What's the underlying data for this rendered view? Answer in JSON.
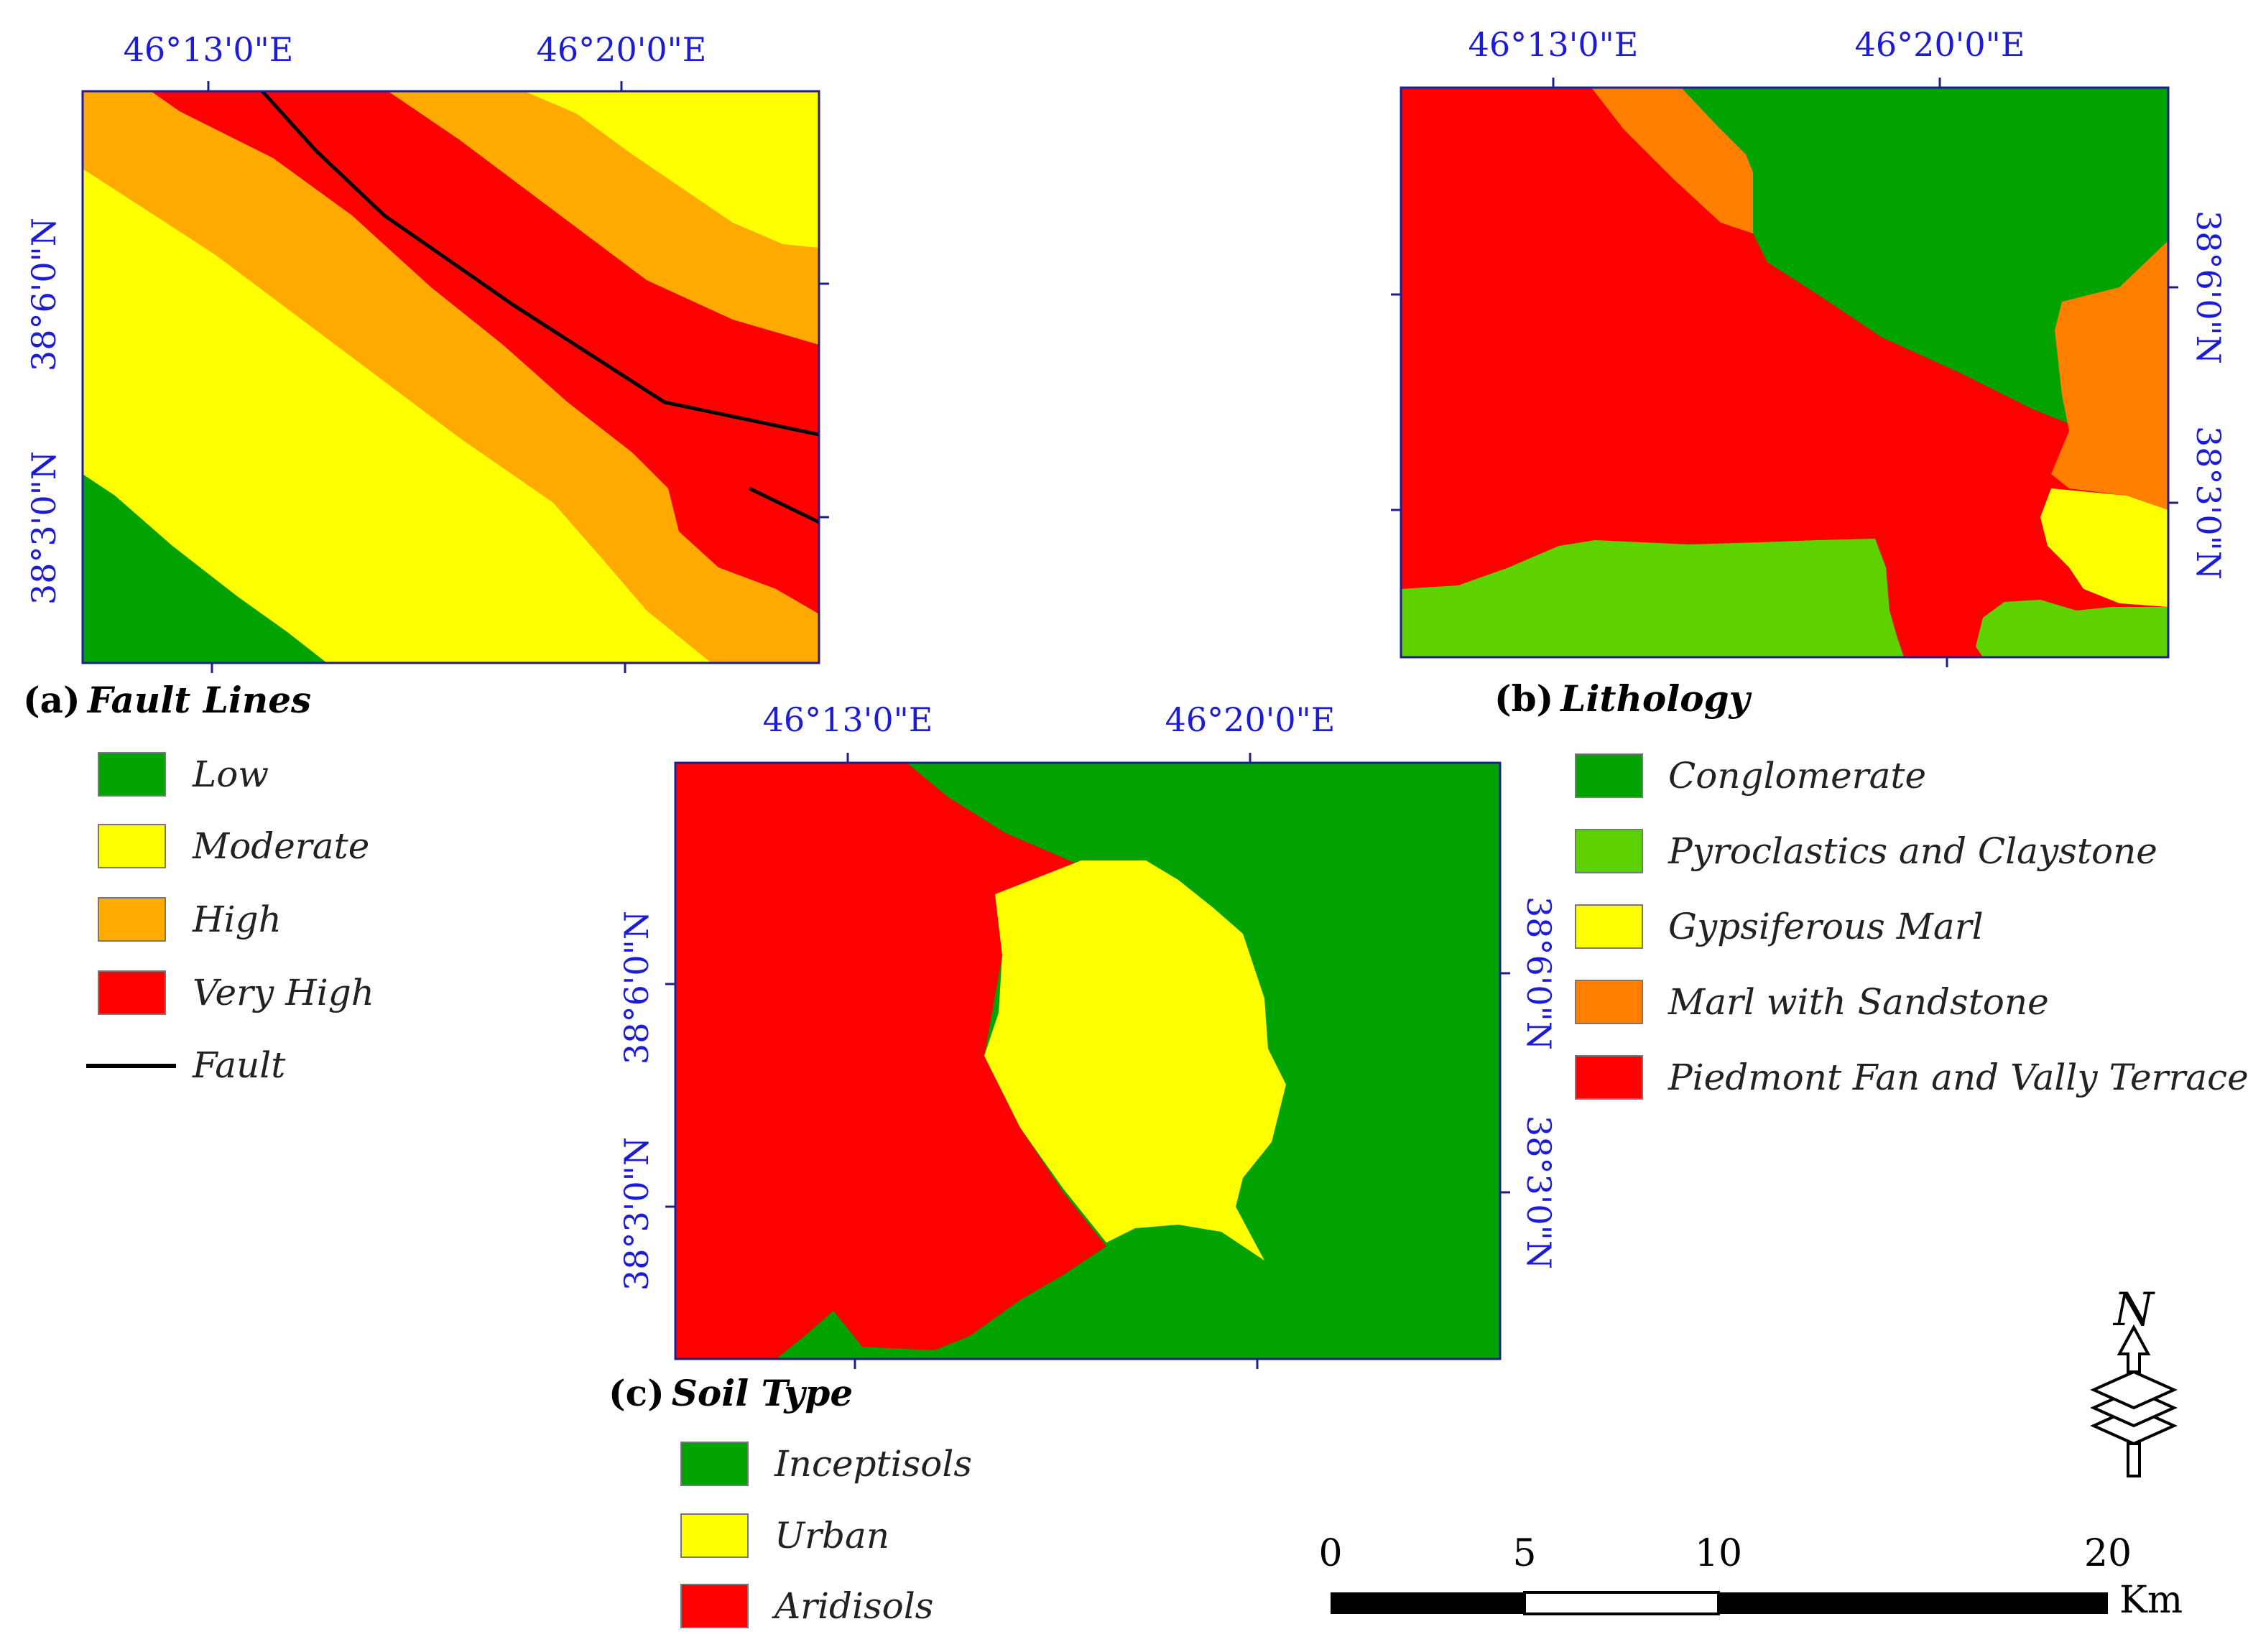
{
  "colors": {
    "green": "#00a300",
    "light_green": "#5ed100",
    "yellow": "#ffff00",
    "orange_light": "#ffaa00",
    "orange": "#ff7f00",
    "red": "#ff0000",
    "coord_blue": "#1c1cd8",
    "fault_line": "#000000"
  },
  "coords": {
    "lon_1": "46°13'0\"E",
    "lon_2": "46°20'0\"E",
    "lat_1": "38°6'0\"N",
    "lat_2": "38°3'0\"N"
  },
  "panel_a": {
    "label": "(a)",
    "title": "Fault Lines",
    "legend": [
      {
        "label": "Low",
        "color": "#00a300"
      },
      {
        "label": "Moderate",
        "color": "#ffff00"
      },
      {
        "label": "High",
        "color": "#ffaa00"
      },
      {
        "label": "Very High",
        "color": "#ff0000"
      }
    ],
    "fault_legend": "Fault"
  },
  "panel_b": {
    "label": "(b)",
    "title": "Lithology",
    "legend": [
      {
        "label": "Conglomerate",
        "color": "#00a300"
      },
      {
        "label": "Pyroclastics and Claystone",
        "color": "#5ed100"
      },
      {
        "label": "Gypsiferous Marl",
        "color": "#ffff00"
      },
      {
        "label": "Marl with Sandstone",
        "color": "#ff7f00"
      },
      {
        "label": "Piedmont Fan and Vally Terrace",
        "color": "#ff0000"
      }
    ]
  },
  "panel_c": {
    "label": "(c)",
    "title": "Soil Type",
    "legend": [
      {
        "label": "Inceptisols",
        "color": "#00a300"
      },
      {
        "label": "Urban",
        "color": "#ffff00"
      },
      {
        "label": "Aridisols",
        "color": "#ff0000"
      }
    ]
  },
  "north_arrow": {
    "label": "N"
  },
  "scale_bar": {
    "ticks": [
      "0",
      "5",
      "10",
      "20"
    ],
    "unit": "Km"
  }
}
